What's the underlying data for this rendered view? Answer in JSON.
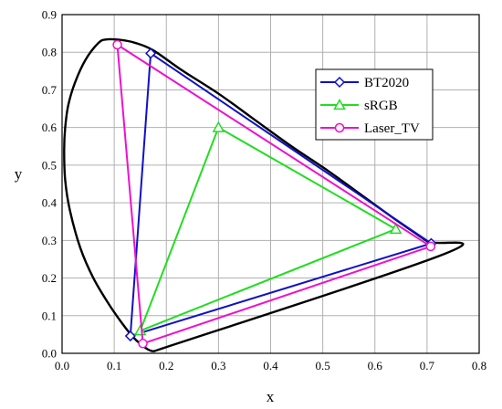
{
  "chart_data": {
    "type": "line",
    "title": "",
    "xlabel": "x",
    "ylabel": "y",
    "xlim": [
      0.0,
      0.8
    ],
    "ylim": [
      0.0,
      0.9
    ],
    "x_ticks": [
      "0.0",
      "0.1",
      "0.2",
      "0.3",
      "0.4",
      "0.5",
      "0.6",
      "0.7",
      "0.8"
    ],
    "y_ticks": [
      "0.0",
      "0.1",
      "0.2",
      "0.3",
      "0.4",
      "0.5",
      "0.6",
      "0.7",
      "0.8",
      "0.9"
    ],
    "grid": true,
    "legend_position": "top-right",
    "locus": {
      "color": "#000000",
      "points": [
        [
          0.175,
          0.005
        ],
        [
          0.165,
          0.01
        ],
        [
          0.15,
          0.025
        ],
        [
          0.135,
          0.045
        ],
        [
          0.115,
          0.08
        ],
        [
          0.09,
          0.13
        ],
        [
          0.06,
          0.2
        ],
        [
          0.035,
          0.28
        ],
        [
          0.015,
          0.38
        ],
        [
          0.006,
          0.46
        ],
        [
          0.004,
          0.54
        ],
        [
          0.006,
          0.6
        ],
        [
          0.012,
          0.66
        ],
        [
          0.025,
          0.72
        ],
        [
          0.045,
          0.78
        ],
        [
          0.07,
          0.825
        ],
        [
          0.085,
          0.834
        ],
        [
          0.11,
          0.833
        ],
        [
          0.14,
          0.825
        ],
        [
          0.175,
          0.805
        ],
        [
          0.23,
          0.752
        ],
        [
          0.3,
          0.69
        ],
        [
          0.37,
          0.62
        ],
        [
          0.44,
          0.55
        ],
        [
          0.51,
          0.485
        ],
        [
          0.58,
          0.415
        ],
        [
          0.64,
          0.355
        ],
        [
          0.7,
          0.298
        ],
        [
          0.735,
          0.265
        ],
        [
          0.175,
          0.005
        ]
      ]
    },
    "series": [
      {
        "name": "BT2020",
        "color": "#1010c8",
        "marker": "diamond",
        "points": [
          [
            0.131,
            0.046
          ],
          [
            0.17,
            0.797
          ],
          [
            0.708,
            0.292
          ],
          [
            0.131,
            0.046
          ]
        ]
      },
      {
        "name": "sRGB",
        "color": "#22dd22",
        "marker": "triangle",
        "points": [
          [
            0.15,
            0.06
          ],
          [
            0.3,
            0.6
          ],
          [
            0.64,
            0.33
          ],
          [
            0.15,
            0.06
          ]
        ]
      },
      {
        "name": "Laser_TV",
        "color": "#ee11cc",
        "marker": "circle",
        "points": [
          [
            0.155,
            0.026
          ],
          [
            0.106,
            0.82
          ],
          [
            0.707,
            0.284
          ],
          [
            0.155,
            0.026
          ]
        ]
      }
    ]
  }
}
